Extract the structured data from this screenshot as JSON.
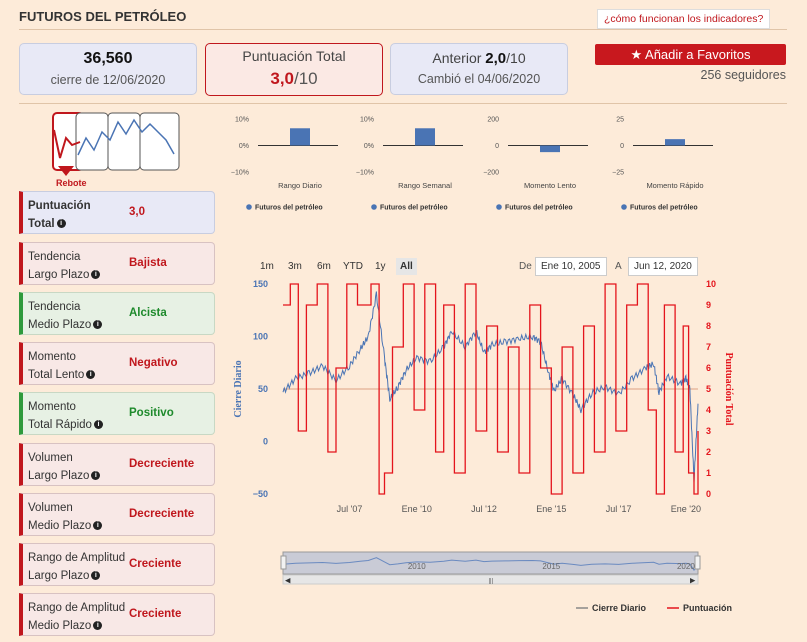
{
  "header": {
    "title": "FUTUROS DEL PETRÓLEO",
    "help_link": "¿cómo funcionan los indicadores?"
  },
  "price_box": {
    "value": "36,560",
    "caption": "cierre de 12/06/2020"
  },
  "score_box": {
    "label": "Puntuación Total",
    "value": "3,0",
    "suffix": "/10"
  },
  "previous_box": {
    "label": "Anterior",
    "value": "2,0",
    "suffix": "/10",
    "caption": "Cambió el 04/06/2020"
  },
  "favorites": {
    "button_label": "Añadir a Favoritos",
    "followers": "256 seguidores"
  },
  "pattern": {
    "label": "Rebote"
  },
  "indicators": [
    {
      "name_line1": "Puntuación",
      "name_line2": "Total",
      "value": "3,0",
      "kind": "total"
    },
    {
      "name_line1": "Tendencia",
      "name_line2": "Largo Plazo",
      "value": "Bajista",
      "kind": "neg"
    },
    {
      "name_line1": "Tendencia",
      "name_line2": "Medio Plazo",
      "value": "Alcista",
      "kind": "pos"
    },
    {
      "name_line1": "Momento",
      "name_line2": "Total Lento",
      "value": "Negativo",
      "kind": "neg"
    },
    {
      "name_line1": "Momento",
      "name_line2": "Total Rápido",
      "value": "Positivo",
      "kind": "pos"
    },
    {
      "name_line1": "Volumen",
      "name_line2": "Largo Plazo",
      "value": "Decreciente",
      "kind": "neg"
    },
    {
      "name_line1": "Volumen",
      "name_line2": "Medio Plazo",
      "value": "Decreciente",
      "kind": "neg"
    },
    {
      "name_line1": "Rango de Amplitud",
      "name_line2": "Largo Plazo",
      "value": "Creciente",
      "kind": "neg"
    },
    {
      "name_line1": "Rango de Amplitud",
      "name_line2": "Medio Plazo",
      "value": "Creciente",
      "kind": "neg"
    }
  ],
  "range_selector": {
    "buttons": [
      "1m",
      "3m",
      "6m",
      "YTD",
      "1y",
      "All"
    ],
    "active": "All",
    "from_label": "De",
    "from_value": "Ene 10, 2005",
    "to_label": "A",
    "to_value": "Jun 12, 2020"
  },
  "colors": {
    "accent": "#c0171d",
    "positive": "#1e8a2c",
    "series_blue": "#4a74b4",
    "series_red": "#e4141c"
  },
  "chart_data": [
    {
      "type": "bar",
      "title": "",
      "xlabel": "Rango Diario",
      "ylabel": "",
      "categories": [
        "Futuros del petróleo"
      ],
      "values": [
        6.5
      ],
      "yticks": [
        "10%",
        "0%",
        "−10%"
      ],
      "ylim": [
        -10,
        10
      ],
      "legend": "Futuros del petróleo"
    },
    {
      "type": "bar",
      "title": "",
      "xlabel": "Rango Semanal",
      "ylabel": "",
      "categories": [
        "Futuros del petróleo"
      ],
      "values": [
        6.5
      ],
      "yticks": [
        "10%",
        "0%",
        "−10%"
      ],
      "ylim": [
        -10,
        10
      ],
      "legend": "Futuros del petróleo"
    },
    {
      "type": "bar",
      "title": "",
      "xlabel": "Momento Lento",
      "ylabel": "",
      "categories": [
        "Futuros del petróleo"
      ],
      "values": [
        -50
      ],
      "yticks": [
        "200",
        "0",
        "−200"
      ],
      "ylim": [
        -200,
        200
      ],
      "legend": "Futuros del petróleo"
    },
    {
      "type": "bar",
      "title": "",
      "xlabel": "Momento Rápido",
      "ylabel": "",
      "categories": [
        "Futuros del petróleo"
      ],
      "values": [
        6
      ],
      "yticks": [
        "25",
        "0",
        "−25"
      ],
      "ylim": [
        -25,
        25
      ],
      "legend": "Futuros del petróleo"
    },
    {
      "type": "line",
      "title": "",
      "ylabel": "Cierre Diario",
      "y2label": "Puntuación Total",
      "ylim": [
        -50,
        150
      ],
      "y2lim": [
        0,
        10
      ],
      "yticks": [
        "150",
        "100",
        "50",
        "0",
        "−50"
      ],
      "y2ticks": [
        "10",
        "9",
        "8",
        "7",
        "6",
        "5",
        "4",
        "3",
        "2",
        "1",
        "0"
      ],
      "xticks": [
        "Jul '07",
        "Ene '10",
        "Jul '12",
        "Ene '15",
        "Jul '17",
        "Ene '20"
      ],
      "xlim": [
        2005.03,
        2020.45
      ],
      "xtick_values": [
        2007.5,
        2010.0,
        2012.5,
        2015.0,
        2017.5,
        2020.0
      ],
      "legend": [
        "Cierre Diario",
        "Puntuación"
      ],
      "series": [
        {
          "name": "Cierre Diario",
          "x": [
            2005.03,
            2005.5,
            2006.0,
            2006.5,
            2007.0,
            2007.5,
            2007.9,
            2008.2,
            2008.5,
            2008.8,
            2009.0,
            2009.3,
            2009.6,
            2010.0,
            2010.5,
            2011.0,
            2011.3,
            2011.8,
            2012.2,
            2012.5,
            2012.8,
            2013.3,
            2013.8,
            2014.3,
            2014.6,
            2014.9,
            2015.1,
            2015.4,
            2015.8,
            2016.1,
            2016.5,
            2017.0,
            2017.5,
            2018.0,
            2018.5,
            2018.8,
            2019.0,
            2019.3,
            2019.8,
            2020.0,
            2020.15,
            2020.3,
            2020.45
          ],
          "y": [
            47,
            60,
            65,
            72,
            58,
            72,
            88,
            100,
            140,
            80,
            40,
            52,
            68,
            80,
            76,
            90,
            105,
            90,
            105,
            85,
            92,
            95,
            98,
            100,
            95,
            65,
            48,
            60,
            45,
            30,
            46,
            52,
            45,
            60,
            70,
            74,
            47,
            62,
            55,
            60,
            50,
            -37,
            36
          ]
        },
        {
          "name": "Puntuación",
          "x": [
            2005.03,
            2005.3,
            2005.6,
            2005.9,
            2006.3,
            2006.7,
            2007.0,
            2007.4,
            2007.8,
            2008.3,
            2008.6,
            2008.8,
            2009.1,
            2009.5,
            2009.9,
            2010.3,
            2010.7,
            2011.0,
            2011.4,
            2011.8,
            2012.2,
            2012.6,
            2013.0,
            2013.4,
            2013.8,
            2014.2,
            2014.6,
            2015.0,
            2015.4,
            2015.8,
            2016.2,
            2016.6,
            2017.0,
            2017.4,
            2017.8,
            2018.2,
            2018.6,
            2018.9,
            2019.2,
            2019.6,
            2019.9,
            2020.1,
            2020.3,
            2020.45
          ],
          "y": [
            9,
            10,
            3,
            9,
            10,
            2,
            6,
            10,
            9,
            10,
            0,
            1,
            7,
            10,
            4,
            10,
            2,
            9,
            1,
            10,
            3,
            8,
            2,
            7,
            1,
            9,
            6,
            0,
            7,
            1,
            8,
            2,
            10,
            3,
            9,
            10,
            4,
            0,
            9,
            2,
            8,
            1,
            0,
            3
          ]
        }
      ],
      "navigator": {
        "xticks": [
          "2010",
          "2015",
          "2020"
        ],
        "xtick_values": [
          2010.0,
          2015.0,
          2020.0
        ]
      }
    }
  ]
}
